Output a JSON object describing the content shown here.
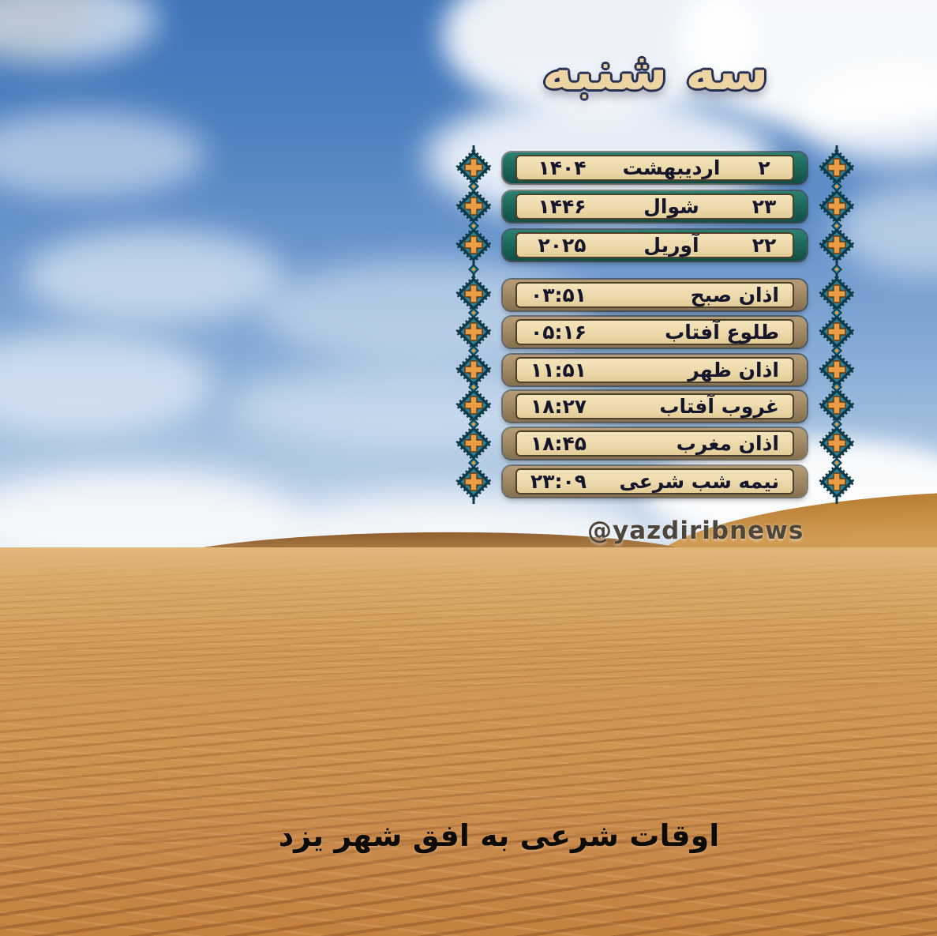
{
  "title": "سه شنبه",
  "dates": [
    {
      "day": "۲",
      "month": "اردیبهشت",
      "year": "۱۴۰۴"
    },
    {
      "day": "۲۳",
      "month": "شوال",
      "year": "۱۴۴۶"
    },
    {
      "day": "۲۲",
      "month": "آوریل",
      "year": "۲۰۲۵"
    }
  ],
  "times": [
    {
      "label": "اذان صبح",
      "value": "۰۳:۵۱"
    },
    {
      "label": "طلوع آفتاب",
      "value": "۰۵:۱۶"
    },
    {
      "label": "اذان ظهر",
      "value": "۱۱:۵۱"
    },
    {
      "label": "غروب آفتاب",
      "value": "۱۸:۲۷"
    },
    {
      "label": "اذان مغرب",
      "value": "۱۸:۴۵"
    },
    {
      "label": "نیمه شب شرعی",
      "value": "۲۳:۰۹"
    }
  ],
  "watermark": "@yazdiribnews",
  "caption": "اوقات شرعی به افق شهر یزد",
  "colors": {
    "date_cap": "#1d6a5d",
    "time_cap": "#a28a65",
    "pill_body": "#ecd9ab",
    "ornament_teal": "#2e8195",
    "ornament_dark": "#0d3a49",
    "ornament_orange": "#ea9d44",
    "title_fill": "#ecd5a2",
    "sky_blue": "#4d80c0",
    "sand": "#cd9350"
  }
}
